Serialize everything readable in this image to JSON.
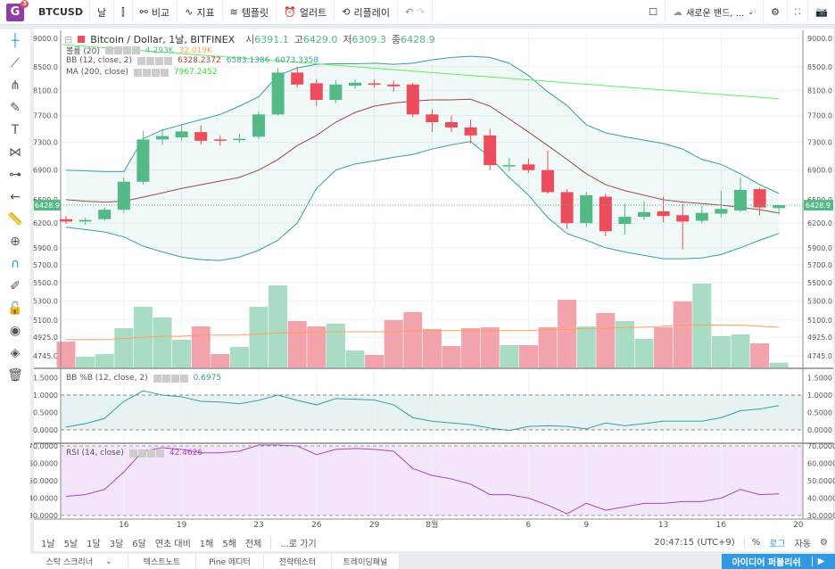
{
  "toolbar": {
    "symbol": "BTCUSD",
    "interval": "날",
    "compare": "비교",
    "indicators": "지표",
    "templates": "템플릿",
    "alert": "얼러트",
    "replay": "리플레이",
    "layout": "새로운 밴드, ...",
    "badge": "3",
    "logo": "G"
  },
  "legend": {
    "title": "Bitcoin / Dollar, 1날, BITFINEX",
    "o_label": "시",
    "o": "6391.1",
    "h_label": "고",
    "h": "6429.0",
    "l_label": "저",
    "l": "6309.3",
    "c_label": "종",
    "c": "6428.9",
    "volume": {
      "name": "볼륨 (20)",
      "v1": "4.293K",
      "v2": "32.019K"
    },
    "bb": {
      "name": "BB (12, close, 2)",
      "v1": "6328.2372",
      "v2": "6583.1386",
      "v3": "6073.3358"
    },
    "ma": {
      "name": "MA (200, close)",
      "v1": "7967.2452"
    },
    "pctb": {
      "name": "BB %B (12, close, 2)",
      "v1": "0.6975"
    },
    "rsi": {
      "name": "RSI (14, close)",
      "v1": "42.4626"
    }
  },
  "colors": {
    "up": "#53b987",
    "down": "#eb4d5c",
    "vol_up": "#a8dcc4",
    "vol_down": "#f3a3ab",
    "bb": "#3a9e9c",
    "bb_mid": "#9c4a45",
    "ma": "#5ef05e",
    "vol_ma": "#ff9f5a",
    "rsi": "#ab47bc"
  },
  "chart_data": {
    "type": "candlestick",
    "last_price": "6428.9",
    "price_ticks": [
      "9000.0",
      "8500.0",
      "8100.0",
      "7700.0",
      "7300.0",
      "6900.0",
      "6500.0",
      "6200.0",
      "5900.0",
      "5700.0",
      "5500.0",
      "5300.0",
      "5100.0",
      "4925.0",
      "4745.0"
    ],
    "time_labels": [
      {
        "i": 3,
        "t": "16"
      },
      {
        "i": 6,
        "t": "19"
      },
      {
        "i": 10,
        "t": "23"
      },
      {
        "i": 13,
        "t": "26"
      },
      {
        "i": 16,
        "t": "29"
      },
      {
        "i": 19,
        "t": "8월"
      },
      {
        "i": 24,
        "t": "6"
      },
      {
        "i": 27,
        "t": "9"
      },
      {
        "i": 31,
        "t": "13"
      },
      {
        "i": 34,
        "t": "16"
      },
      {
        "i": 38,
        "t": "20"
      }
    ],
    "ohlc": [
      [
        6250,
        6290,
        6190,
        6220
      ],
      [
        6220,
        6270,
        6180,
        6240
      ],
      [
        6250,
        6400,
        6230,
        6370
      ],
      [
        6370,
        6800,
        6330,
        6740
      ],
      [
        6740,
        7470,
        6700,
        7340
      ],
      [
        7340,
        7500,
        7260,
        7390
      ],
      [
        7370,
        7570,
        7320,
        7460
      ],
      [
        7450,
        7550,
        7270,
        7320
      ],
      [
        7340,
        7400,
        7250,
        7330
      ],
      [
        7330,
        7420,
        7290,
        7350
      ],
      [
        7380,
        7770,
        7350,
        7720
      ],
      [
        7720,
        8480,
        7700,
        8400
      ],
      [
        8400,
        8500,
        8150,
        8200
      ],
      [
        8220,
        8290,
        7850,
        7950
      ],
      [
        7950,
        8270,
        7900,
        8200
      ],
      [
        8180,
        8290,
        8130,
        8230
      ],
      [
        8220,
        8280,
        8150,
        8200
      ],
      [
        8200,
        8260,
        8080,
        8170
      ],
      [
        8200,
        8230,
        7680,
        7720
      ],
      [
        7720,
        7800,
        7450,
        7600
      ],
      [
        7600,
        7700,
        7450,
        7520
      ],
      [
        7520,
        7640,
        7280,
        7400
      ],
      [
        7400,
        7500,
        6900,
        6970
      ],
      [
        6960,
        7070,
        6880,
        6970
      ],
      [
        6980,
        7060,
        6860,
        6900
      ],
      [
        6900,
        7180,
        6580,
        6600
      ],
      [
        6600,
        6640,
        6130,
        6200
      ],
      [
        6200,
        6600,
        6150,
        6560
      ],
      [
        6540,
        6580,
        6040,
        6100
      ],
      [
        6190,
        6450,
        6060,
        6280
      ],
      [
        6280,
        6480,
        6240,
        6340
      ],
      [
        6350,
        6540,
        6210,
        6290
      ],
      [
        6300,
        6450,
        5880,
        6220
      ],
      [
        6230,
        6420,
        6200,
        6330
      ],
      [
        6320,
        6620,
        6270,
        6380
      ],
      [
        6360,
        6800,
        6340,
        6630
      ],
      [
        6640,
        6660,
        6300,
        6400
      ],
      [
        6391.1,
        6429,
        6309.3,
        6428.9
      ]
    ],
    "volume_k": [
      23.2,
      9.6,
      12,
      35.2,
      54.4,
      44.8,
      24.8,
      36.8,
      12,
      18.4,
      54.4,
      73.6,
      41.6,
      36.8,
      39.2,
      15.2,
      11.2,
      42.4,
      49.6,
      34.4,
      19.2,
      35.2,
      36,
      20,
      20,
      36,
      60.8,
      36.8,
      48.8,
      41.6,
      25.6,
      36,
      59.2,
      75.2,
      28,
      29.6,
      21.6,
      4.293
    ],
    "volume_ma_k": [
      25,
      25,
      25,
      26,
      27,
      28,
      28,
      29,
      29,
      29,
      30,
      31,
      31,
      32,
      32,
      32,
      32,
      32,
      33,
      33,
      33,
      33,
      33,
      33,
      33,
      34,
      34,
      35,
      35,
      36,
      36,
      37,
      38,
      38,
      38,
      38,
      37,
      36
    ],
    "bb_upper": [
      6900,
      6890,
      6880,
      6880,
      7350,
      7480,
      7560,
      7640,
      7720,
      7850,
      8000,
      8350,
      8480,
      8540,
      8550,
      8550,
      8560,
      8540,
      8560,
      8620,
      8660,
      8680,
      8660,
      8560,
      8350,
      8080,
      7860,
      7560,
      7440,
      7380,
      7330,
      7280,
      7200,
      7050,
      6980,
      6850,
      6700,
      6583.1
    ],
    "bb_mid": [
      6500,
      6480,
      6470,
      6480,
      6535,
      6590,
      6650,
      6700,
      6750,
      6800,
      6900,
      7050,
      7250,
      7400,
      7600,
      7750,
      7850,
      7900,
      7930,
      7950,
      7950,
      7960,
      7850,
      7650,
      7450,
      7250,
      7050,
      6850,
      6700,
      6620,
      6560,
      6500,
      6470,
      6450,
      6430,
      6400,
      6370,
      6328.2
    ],
    "bb_lower": [
      6150,
      6120,
      6090,
      6030,
      5920,
      5850,
      5790,
      5760,
      5750,
      5790,
      5870,
      5990,
      6200,
      6650,
      6900,
      6985,
      7030,
      7080,
      7120,
      7200,
      7260,
      7310,
      7080,
      6800,
      6560,
      6270,
      6070,
      5990,
      5900,
      5850,
      5810,
      5770,
      5770,
      5780,
      5820,
      5900,
      5990,
      6073.3
    ],
    "ma200": {
      "start": 9000,
      "end": 7967.2
    },
    "pctb": {
      "ticks": [
        "1.5000",
        "1.0000",
        "0.5000",
        "0.0000"
      ],
      "values": [
        0.08,
        0.18,
        0.33,
        0.82,
        1.12,
        1.0,
        0.95,
        0.82,
        0.8,
        0.75,
        0.85,
        1.0,
        0.85,
        0.72,
        0.9,
        0.88,
        0.86,
        0.72,
        0.35,
        0.25,
        0.2,
        0.15,
        0.05,
        -0.02,
        0.1,
        0.12,
        0.1,
        0.03,
        0.2,
        0.12,
        0.18,
        0.25,
        0.25,
        0.25,
        0.35,
        0.55,
        0.6,
        0.6975
      ]
    },
    "rsi": {
      "ticks": [
        "70.0000",
        "60.0000",
        "50.0000",
        "40.0000",
        "30.0000"
      ],
      "values": [
        41,
        42,
        45,
        55,
        67,
        69,
        68,
        66,
        66,
        67,
        72,
        73,
        70,
        65,
        68,
        68.5,
        68,
        67,
        57,
        53,
        51,
        48,
        42,
        42,
        40,
        36,
        31,
        37,
        33,
        35,
        37,
        37,
        38,
        38,
        40,
        45,
        42,
        42.46
      ]
    }
  },
  "rangebar": {
    "items": [
      "1날",
      "5날",
      "1달",
      "3달",
      "6달",
      "연초 대비",
      "1해",
      "5해",
      "전체"
    ],
    "goto": "...로 가기",
    "time": "20:47:15 (UTC+9)",
    "pct": "%",
    "log": "로그",
    "auto": "자동"
  },
  "bottom": {
    "tabs": [
      "스탁 스크리너",
      "텍스트노트",
      "Pine 에디터",
      "전략테스터",
      "트레이딩패널"
    ],
    "publish": "아이디어 퍼블리쉬"
  }
}
